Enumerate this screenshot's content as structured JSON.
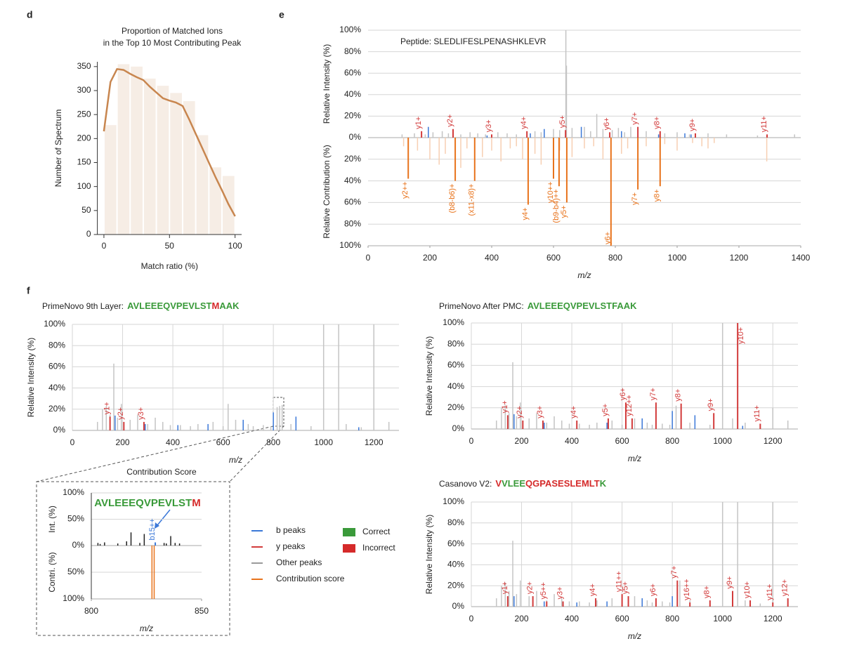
{
  "chart_data": [
    {
      "type": "bar_line",
      "panel": "d",
      "title": [
        "Proportion of Matched Ions",
        "in the Top 10 Most Contributing Peak"
      ],
      "xlabel": "Match ratio (%)",
      "ylabel": "Number of Spectrum",
      "xlim": [
        -5,
        105
      ],
      "xticks": [
        0,
        50,
        100
      ],
      "ylim": [
        0,
        360
      ],
      "yticks": [
        0,
        50,
        100,
        150,
        200,
        250,
        300,
        350
      ],
      "grid": false,
      "bins": [
        0,
        10,
        20,
        30,
        40,
        50,
        60,
        70,
        80,
        90,
        100
      ],
      "counts": [
        228,
        355,
        350,
        325,
        310,
        295,
        278,
        207,
        140,
        122
      ],
      "bar_color": "#f6ede5",
      "line": {
        "color": "#c8864f",
        "x": [
          0,
          5,
          10,
          15,
          20,
          25,
          30,
          35,
          40,
          45,
          50,
          55,
          60,
          65,
          70,
          75,
          80,
          85,
          90,
          95,
          100
        ],
        "values": [
          215,
          318,
          345,
          343,
          335,
          328,
          322,
          308,
          296,
          284,
          279,
          275,
          268,
          240,
          210,
          180,
          150,
          120,
          92,
          63,
          38
        ]
      }
    },
    {
      "type": "mirror",
      "panel": "e",
      "annotation": "Peptide: SLEDLIFESLPENASHKLEVR",
      "xlabel": "m/z",
      "ylabel": "Relative Intensity (%)",
      "y2label": "Relative Contribution (%)",
      "xlim": [
        0,
        1400
      ],
      "xticks": [
        0,
        200,
        400,
        600,
        800,
        1000,
        1200,
        1400
      ],
      "ylim": [
        0,
        100
      ],
      "yticks": [
        {
          "value": 0,
          "label": "0%"
        },
        {
          "value": 20,
          "label": "20%"
        },
        {
          "value": 40,
          "label": "40%"
        },
        {
          "value": 60,
          "label": "60%"
        },
        {
          "value": 80,
          "label": "80%"
        },
        {
          "value": 100,
          "label": "100%"
        }
      ],
      "y2lim": [
        0,
        100
      ],
      "y2ticks": [
        {
          "value": 20,
          "label": "20%"
        },
        {
          "value": 40,
          "label": "40%"
        },
        {
          "value": 60,
          "label": "60%"
        },
        {
          "value": 80,
          "label": "80%"
        },
        {
          "value": 100,
          "label": "100%"
        }
      ],
      "grid": "y",
      "series": [
        {
          "color": "#c4c4c4",
          "x": [
            110,
            150,
            185,
            210,
            240,
            260,
            300,
            330,
            355,
            380,
            420,
            450,
            480,
            540,
            560,
            600,
            620,
            640,
            642,
            660,
            700,
            720,
            740,
            760,
            790,
            810,
            830,
            850,
            900,
            960,
            1000,
            1040,
            1100,
            1160,
            1260,
            1290,
            1380
          ],
          "values": [
            3,
            4,
            3,
            5,
            6,
            4,
            3,
            5,
            4,
            3,
            5,
            4,
            3,
            6,
            5,
            8,
            7,
            100,
            67,
            9,
            10,
            6,
            22,
            8,
            7,
            9,
            5,
            10,
            6,
            4,
            5,
            3,
            4,
            3,
            2,
            2,
            3
          ]
        },
        {
          "color": "#3b78d8",
          "x": [
            195,
            385,
            525,
            570,
            690,
            820,
            940,
            1025,
            1045
          ],
          "values": [
            10,
            2,
            4,
            8,
            10,
            6,
            3,
            4,
            3
          ]
        },
        {
          "color": "#d23b3b",
          "x": [
            173,
            275,
            400,
            514,
            639,
            782,
            873,
            945,
            1059,
            1291
          ],
          "values": [
            6,
            8,
            3,
            6,
            7,
            5,
            10,
            6,
            4,
            3
          ],
          "labels": [
            "y1+",
            "y2+",
            "y3+",
            "y4+",
            "y5+",
            "y6+",
            "y7+",
            "y8+",
            "y9+",
            "y11+"
          ]
        },
        {
          "color": "#f7cfb2",
          "axis": "y2",
          "x": [
            115,
            160,
            200,
            230,
            250,
            300,
            320,
            370,
            400,
            430,
            460,
            480,
            500,
            540,
            560,
            620,
            660,
            700,
            730,
            760,
            820,
            840,
            900,
            960,
            1000,
            1050,
            1080,
            1100,
            1120,
            1290
          ],
          "values": [
            8,
            12,
            20,
            25,
            15,
            28,
            10,
            18,
            12,
            22,
            10,
            8,
            20,
            15,
            25,
            12,
            18,
            10,
            8,
            20,
            15,
            10,
            8,
            6,
            12,
            5,
            8,
            10,
            5,
            22
          ]
        },
        {
          "color": "#e8731c",
          "axis": "y2",
          "x": [
            130,
            282,
            345,
            518,
            600,
            618,
            643,
            786,
            873,
            945
          ],
          "values": [
            38,
            40,
            40,
            62,
            38,
            45,
            60,
            100,
            48,
            45
          ],
          "labels": [
            "y2++",
            "(b8-b6)+",
            "(x11-x8)+",
            "y4+",
            "y10++",
            "(b9-b4)++",
            "y5+",
            "y6+",
            "y7+",
            "y8+"
          ]
        }
      ]
    },
    {
      "type": "spectrum",
      "panel": "f",
      "title": "PrimeNovo 9th Layer:",
      "peptide": [
        {
          "text": "AVLEEEQVPEVLST",
          "color": "#3a9a3a"
        },
        {
          "text": "M",
          "color": "#d52a2a"
        },
        {
          "text": "AAK",
          "color": "#3a9a3a"
        }
      ],
      "xlabel": "m/z",
      "ylabel": "Relative Intensity (%)",
      "xlim": [
        0,
        1300
      ],
      "xticks": [
        0,
        200,
        400,
        600,
        800,
        1000,
        1200
      ],
      "ylim": [
        0,
        100
      ],
      "yticks": [
        {
          "value": 0,
          "label": "0%"
        },
        {
          "value": 20,
          "label": "20%"
        },
        {
          "value": 40,
          "label": "40%"
        },
        {
          "value": 60,
          "label": "60%"
        },
        {
          "value": 80,
          "label": "80%"
        },
        {
          "value": 100,
          "label": "100%"
        }
      ],
      "grid": "both",
      "series": [
        {
          "color": "#c4c4c4",
          "x": [
            100,
            120,
            135,
            150,
            165,
            180,
            195,
            230,
            260,
            300,
            330,
            360,
            390,
            430,
            470,
            500,
            560,
            600,
            620,
            650,
            680,
            700,
            720,
            760,
            790,
            815,
            825,
            835,
            870,
            950,
            1000,
            1060,
            1090,
            1150,
            1200,
            1260
          ],
          "values": [
            8,
            20,
            23,
            15,
            63,
            12,
            25,
            10,
            15,
            6,
            12,
            8,
            5,
            5,
            4,
            6,
            8,
            4,
            25,
            10,
            8,
            6,
            4,
            5,
            4,
            22,
            23,
            24,
            6,
            4,
            100,
            100,
            6,
            3,
            100,
            8
          ]
        },
        {
          "color": "#3b78d8",
          "x": [
            170,
            290,
            420,
            540,
            680,
            800,
            890,
            1140
          ],
          "values": [
            14,
            6,
            5,
            6,
            10,
            17,
            13,
            3
          ]
        },
        {
          "color": "#d23b3b",
          "x": [
            150,
            205,
            285
          ],
          "values": [
            13,
            8,
            8
          ],
          "labels": [
            "y1+",
            "y2+",
            "y3+"
          ]
        }
      ]
    },
    {
      "type": "spectrum",
      "title": "PrimeNovo After PMC:",
      "peptide": [
        {
          "text": "AVLEEEQVPEVLSTFAAK",
          "color": "#3a9a3a"
        }
      ],
      "xlabel": "m/z",
      "ylabel": "Relative Intensity (%)",
      "xlim": [
        0,
        1300
      ],
      "xticks": [
        0,
        200,
        400,
        600,
        800,
        1000,
        1200
      ],
      "ylim": [
        0,
        100
      ],
      "yticks": [
        {
          "value": 0,
          "label": "0%"
        },
        {
          "value": 20,
          "label": "20%"
        },
        {
          "value": 40,
          "label": "40%"
        },
        {
          "value": 60,
          "label": "60%"
        },
        {
          "value": 80,
          "label": "80%"
        },
        {
          "value": 100,
          "label": "100%"
        }
      ],
      "grid": "both",
      "series": [
        {
          "color": "#c4c4c4",
          "x": [
            100,
            120,
            135,
            150,
            165,
            180,
            195,
            230,
            260,
            300,
            330,
            360,
            390,
            430,
            470,
            500,
            560,
            600,
            650,
            680,
            700,
            720,
            760,
            790,
            815,
            870,
            950,
            1000,
            1040,
            1090,
            1150,
            1200,
            1260
          ],
          "values": [
            8,
            20,
            23,
            15,
            63,
            12,
            25,
            10,
            15,
            6,
            12,
            8,
            5,
            5,
            4,
            6,
            8,
            4,
            10,
            8,
            6,
            4,
            5,
            4,
            22,
            6,
            4,
            100,
            10,
            6,
            3,
            20,
            8
          ]
        },
        {
          "color": "#3b78d8",
          "x": [
            170,
            290,
            420,
            540,
            680,
            800,
            890,
            1080
          ],
          "values": [
            14,
            6,
            5,
            6,
            10,
            17,
            13,
            3
          ]
        },
        {
          "color": "#d23b3b",
          "x": [
            145,
            205,
            285,
            420,
            545,
            615,
            640,
            735,
            835,
            965,
            1060,
            1150
          ],
          "values": [
            13,
            8,
            8,
            8,
            10,
            25,
            10,
            25,
            24,
            15,
            100,
            5
          ],
          "labels": [
            "y1+",
            "y2+",
            "y3+",
            "y4+",
            "y5+",
            "y6+",
            "y12++",
            "y7+",
            "y8+",
            "y9+",
            "y10+",
            "y11+"
          ]
        }
      ]
    },
    {
      "type": "spectrum",
      "title": "Casanovo V2:",
      "peptide": [
        {
          "text": "V",
          "color": "#d52a2a"
        },
        {
          "text": "VLEE",
          "color": "#3a9a3a"
        },
        {
          "text": "QGPASESLEMLT",
          "color": "#d52a2a"
        },
        {
          "text": "K",
          "color": "#3a9a3a"
        }
      ],
      "xlabel": "m/z",
      "ylabel": "Relative Intensity (%)",
      "xlim": [
        0,
        1300
      ],
      "xticks": [
        0,
        200,
        400,
        600,
        800,
        1000,
        1200
      ],
      "ylim": [
        0,
        100
      ],
      "yticks": [
        {
          "value": 0,
          "label": "0%"
        },
        {
          "value": 20,
          "label": "20%"
        },
        {
          "value": 40,
          "label": "40%"
        },
        {
          "value": 60,
          "label": "60%"
        },
        {
          "value": 80,
          "label": "80%"
        },
        {
          "value": 100,
          "label": "100%"
        }
      ],
      "grid": "both",
      "series": [
        {
          "color": "#c4c4c4",
          "x": [
            100,
            120,
            135,
            150,
            165,
            180,
            195,
            230,
            260,
            300,
            330,
            360,
            390,
            430,
            470,
            500,
            560,
            600,
            650,
            680,
            700,
            720,
            760,
            790,
            830,
            870,
            950,
            1000,
            1060,
            1090,
            1150,
            1200,
            1260
          ],
          "values": [
            8,
            20,
            23,
            15,
            63,
            12,
            25,
            10,
            15,
            6,
            12,
            8,
            5,
            5,
            4,
            6,
            8,
            4,
            10,
            8,
            6,
            4,
            5,
            4,
            25,
            6,
            4,
            100,
            100,
            6,
            3,
            100,
            8
          ]
        },
        {
          "color": "#3b78d8",
          "x": [
            170,
            290,
            420,
            540,
            680,
            800
          ],
          "values": [
            10,
            5,
            4,
            5,
            8,
            10
          ]
        },
        {
          "color": "#d23b3b",
          "x": [
            145,
            245,
            300,
            365,
            495,
            600,
            625,
            735,
            820,
            870,
            950,
            1040,
            1110,
            1200,
            1260
          ],
          "values": [
            10,
            10,
            5,
            5,
            8,
            12,
            10,
            8,
            25,
            4,
            6,
            15,
            6,
            4,
            8
          ],
          "labels": [
            "y1+",
            "y2+",
            "y5++",
            "y3+",
            "y4+",
            "y11++",
            "y5+",
            "y6+",
            "y7+",
            "y16++",
            "y8+",
            "y9+",
            "y10+",
            "y11+",
            "y12+"
          ]
        }
      ]
    },
    {
      "type": "mirror",
      "title": "Contribution Score",
      "peptide": [
        {
          "text": "AVLEEEQVPEVLST",
          "color": "#3a9a3a"
        },
        {
          "text": "M",
          "color": "#d52a2a"
        }
      ],
      "xlabel": "m/z",
      "ylabel": "Int. (%)",
      "y2label": "Contri. (%)",
      "xlim": [
        800,
        850
      ],
      "xticks": [
        800,
        850
      ],
      "ylim": [
        0,
        100
      ],
      "yticks": [
        {
          "value": 0,
          "label": "0%"
        },
        {
          "value": 50,
          "label": "50%"
        },
        {
          "value": 100,
          "label": "100%"
        }
      ],
      "y2lim": [
        0,
        100
      ],
      "y2ticks": [
        {
          "value": 50,
          "label": "50%"
        },
        {
          "value": 100,
          "label": "100%"
        }
      ],
      "grid": "y",
      "series": [
        {
          "color": "#222222",
          "x": [
            803,
            804,
            806,
            812,
            816,
            818,
            822,
            824,
            833,
            834,
            836,
            838,
            840
          ],
          "values": [
            5,
            3,
            6,
            4,
            8,
            25,
            5,
            22,
            5,
            4,
            18,
            5,
            4
          ]
        },
        {
          "color": "#3b78d8",
          "x": [
            829
          ],
          "values": [
            6
          ],
          "labels": [
            "b15++"
          ]
        },
        {
          "color": "#e8731c",
          "axis": "y2",
          "x": [
            827.5,
            828.5
          ],
          "values": [
            100,
            100
          ]
        }
      ]
    }
  ],
  "legend": {
    "items": [
      {
        "name": "b peaks",
        "color": "#3b78d8",
        "marker": "line"
      },
      {
        "name": "y peaks",
        "color": "#d23b3b",
        "marker": "line"
      },
      {
        "name": "Other peaks",
        "color": "#9a9a9a",
        "marker": "line"
      },
      {
        "name": "Contribution score",
        "color": "#e8731c",
        "marker": "line"
      },
      {
        "name": "Correct",
        "color": "#3a9a3a",
        "marker": "square"
      },
      {
        "name": "Incorrect",
        "color": "#d52a2a",
        "marker": "square"
      }
    ]
  }
}
